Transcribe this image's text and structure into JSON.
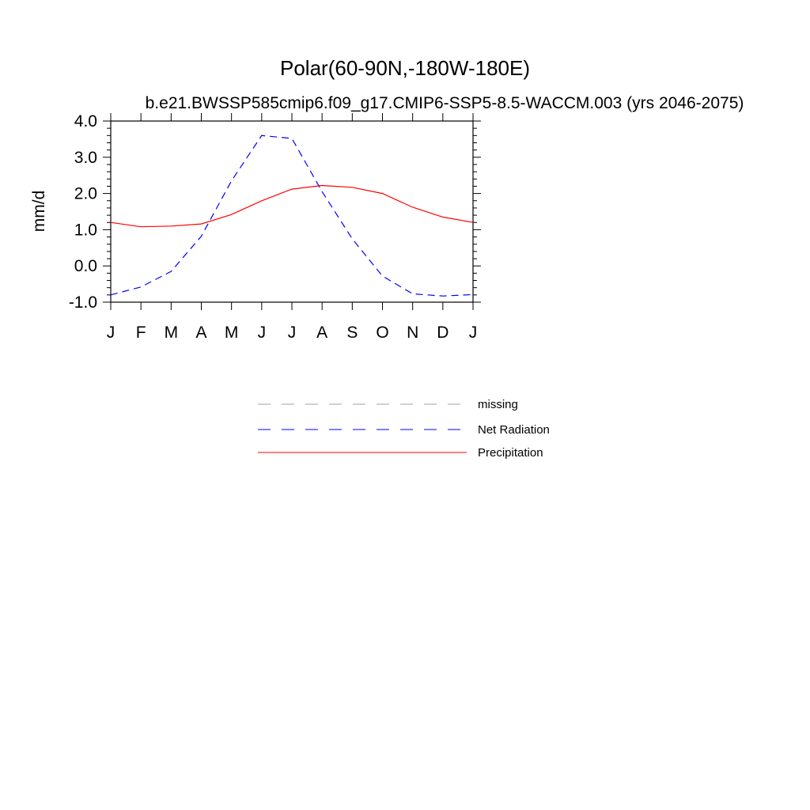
{
  "chart_data": {
    "type": "line",
    "title": "Polar(60-90N,-180W-180E)",
    "subtitle": "b.e21.BWSSP585cmip6.f09_g17.CMIP6-SSP5-8.5-WACCM.003 (yrs 2046-2075)",
    "xlabel": "",
    "ylabel": "mm/d",
    "ylim": [
      -1.0,
      4.0
    ],
    "yticks": [
      "-1.0",
      "0.0",
      "1.0",
      "2.0",
      "3.0",
      "4.0"
    ],
    "categories": [
      "J",
      "F",
      "M",
      "A",
      "M",
      "J",
      "J",
      "A",
      "S",
      "O",
      "N",
      "D",
      "J"
    ],
    "grid": false,
    "legend_position": "bottom",
    "series": [
      {
        "name": "Net Radiation",
        "style": "dashed",
        "color": "#0000ff",
        "values": [
          -0.8,
          -0.58,
          -0.15,
          0.82,
          2.35,
          3.6,
          3.52,
          2.05,
          0.75,
          -0.28,
          -0.77,
          -0.83,
          -0.79
        ]
      },
      {
        "name": "Precipitation",
        "style": "solid",
        "color": "#ff0000",
        "values": [
          1.2,
          1.08,
          1.1,
          1.16,
          1.42,
          1.8,
          2.12,
          2.22,
          2.17,
          2.0,
          1.62,
          1.35,
          1.2
        ]
      }
    ],
    "legend": [
      {
        "label": "missing",
        "style": "dashed",
        "color": "#a0a0a0"
      },
      {
        "label": "Net Radiation",
        "style": "dashed",
        "color": "#0000ff"
      },
      {
        "label": "Precipitation",
        "style": "solid",
        "color": "#ff0000"
      }
    ]
  }
}
